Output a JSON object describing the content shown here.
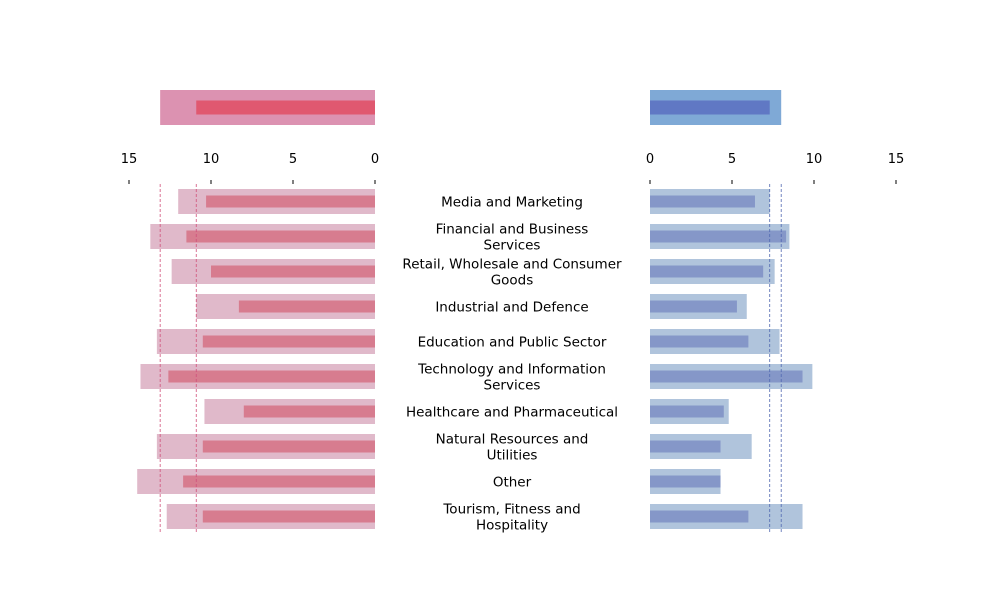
{
  "chart_data": {
    "type": "bar",
    "orientation": "horizontal",
    "layout": "butterfly",
    "categories": [
      "Media and Marketing",
      "Financial and Business Services",
      "Retail, Wholesale and Consumer Goods",
      "Industrial and Defence",
      "Education and Public Sector",
      "Technology and Information Services",
      "Healthcare and Pharmaceutical",
      "Natural Resources and Utilities",
      "Other",
      "Tourism, Fitness and Hospitality"
    ],
    "category_lines": [
      [
        "Media and Marketing"
      ],
      [
        "Financial and Business",
        "Services"
      ],
      [
        "Retail, Wholesale and Consumer",
        "Goods"
      ],
      [
        "Industrial and Defence"
      ],
      [
        "Education and Public Sector"
      ],
      [
        "Technology and Information",
        "Services"
      ],
      [
        "Healthcare and Pharmaceutical"
      ],
      [
        "Natural Resources and",
        "Utilities"
      ],
      [
        "Other"
      ],
      [
        "Tourism, Fitness and",
        "Hospitality"
      ]
    ],
    "left": {
      "series": [
        {
          "values": [
            12.0,
            13.7,
            12.4,
            10.9,
            13.3,
            14.3,
            10.4,
            13.3,
            14.5,
            12.7
          ]
        },
        {
          "values": [
            10.3,
            11.5,
            10.0,
            8.3,
            10.5,
            12.6,
            8.0,
            10.5,
            11.7,
            10.5
          ]
        }
      ],
      "summary": [
        13.1,
        10.9
      ],
      "ticks": [
        15,
        10,
        5,
        0
      ],
      "xlim": [
        16,
        0
      ]
    },
    "right": {
      "series": [
        {
          "values": [
            7.3,
            8.5,
            7.6,
            5.9,
            7.9,
            9.9,
            4.8,
            6.2,
            4.3,
            9.3
          ]
        },
        {
          "values": [
            6.4,
            8.3,
            6.9,
            5.3,
            6.0,
            9.3,
            4.5,
            4.3,
            4.3,
            6.0
          ]
        }
      ],
      "summary": [
        8.0,
        7.3
      ],
      "ticks": [
        0,
        5,
        10,
        15
      ],
      "xlim": [
        0,
        16
      ]
    },
    "colors": {
      "left_outer": "#e0b9ca",
      "left_inner": "#d77c8f",
      "left_summary_outer": "#dc92b1",
      "left_summary_inner": "#e05870",
      "left_ref": "#d0507a",
      "right_outer": "#b0c4dc",
      "right_inner": "#8597c8",
      "right_summary_outer": "#7fa9d6",
      "right_summary_inner": "#6078c4",
      "right_ref": "#5068b0"
    },
    "grid": false,
    "legend": "none"
  }
}
